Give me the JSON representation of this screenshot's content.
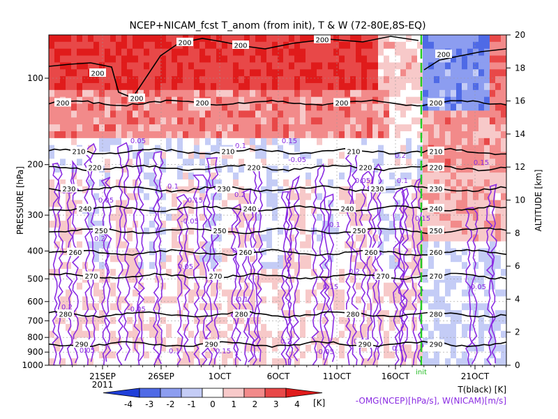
{
  "chart_data": {
    "type": "heatmap",
    "title": "NCEP+NICAM_fcst T_anom (from init), T & W  (72-80E,8S-EQ)",
    "ylabel_left": "PRESSURE [hPa]",
    "ylabel_right": "ALTITUDE [km]",
    "pressure_ticks": [
      100,
      200,
      300,
      400,
      500,
      600,
      700,
      800,
      900,
      1000
    ],
    "altitude_ticks": [
      0,
      2,
      4,
      6,
      8,
      10,
      12,
      14,
      16,
      18,
      20
    ],
    "x_tick_labels": [
      "21SEP",
      "26SEP",
      "1OCT",
      "6OCT",
      "11OCT",
      "16OCT",
      "21OCT"
    ],
    "x_year_label": "2011",
    "init_label": "init",
    "colorbar": {
      "ticks": [
        "-4",
        "-3",
        "-2",
        "-1",
        "0",
        "1",
        "2",
        "3",
        "4"
      ],
      "unit": "[K]",
      "colors": [
        "#1f3fd9",
        "#4f6ae6",
        "#8c9df0",
        "#c4ccf6",
        "#ffffff",
        "#f7c9c9",
        "#f28a8a",
        "#e84848",
        "#e01b1b"
      ]
    },
    "legend": {
      "black_line": "T(black) [K]",
      "purple_line": "-OMG(NCEP)[hPa/s], W(NICAM)[m/s]"
    },
    "temperature_contours": [
      {
        "value": "200",
        "pressure": 122
      },
      {
        "value": "210",
        "pressure": 180
      },
      {
        "value": "220",
        "pressure": 205
      },
      {
        "value": "230",
        "pressure": 243
      },
      {
        "value": "240",
        "pressure": 285
      },
      {
        "value": "250",
        "pressure": 340
      },
      {
        "value": "260",
        "pressure": 405
      },
      {
        "value": "270",
        "pressure": 490
      },
      {
        "value": "280",
        "pressure": 665
      },
      {
        "value": "290",
        "pressure": 845
      }
    ],
    "w_contour_labels": [
      "0.05",
      "0.1",
      "0.15",
      "0.2",
      "-0.05"
    ]
  }
}
